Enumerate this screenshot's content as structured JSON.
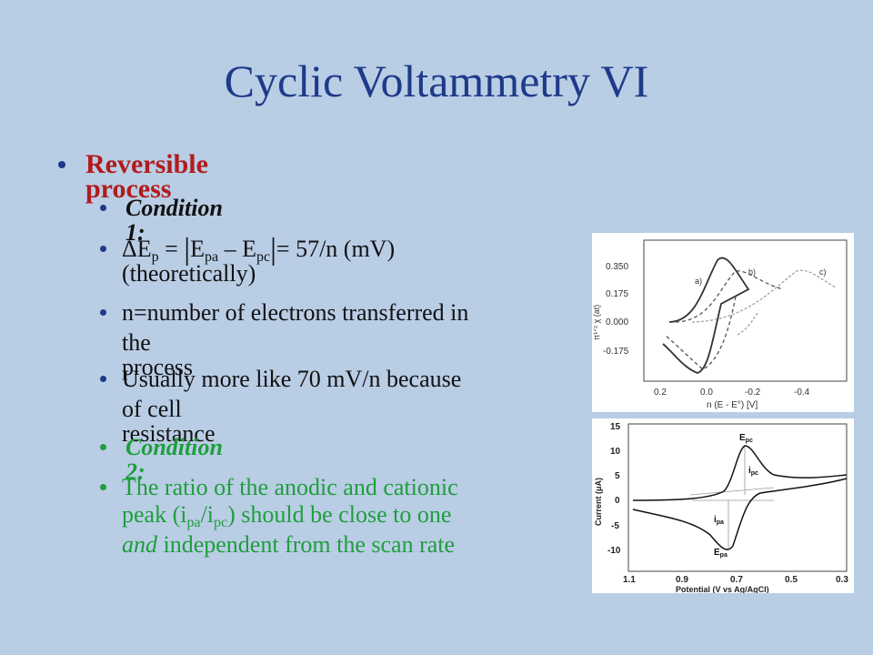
{
  "slide": {
    "title": "Cyclic Voltammetry VI",
    "bullets": {
      "reversible": "Reversible process",
      "condition1": "Condition 1:",
      "dep_delta": "ΔE",
      "dep_sub_p": "p",
      "dep_eq": " = ",
      "dep_bar": "|",
      "dep_E1": "E",
      "dep_sub_pa": "pa",
      "dep_minus": " – E",
      "dep_sub_pc": "pc",
      "dep_tail": "= 57/n (mV)",
      "dep_line2": "(theoretically)",
      "n_line1": "n=number of electrons transferred in",
      "n_line2": "the process",
      "usual_line1": "Usually more like 70 mV/n because",
      "usual_line2": "of cell resistance",
      "condition2": "Condition 2:",
      "ratio_line1": "The ratio of the anodic and cationic",
      "ratio_l2_a": "peak (i",
      "ratio_l2_sub1": "pa",
      "ratio_l2_b": "/i",
      "ratio_l2_sub2": "pc",
      "ratio_l2_c": ") should be close to one",
      "ratio_l3_and": "and",
      "ratio_l3_rest": " independent from the scan rate"
    }
  },
  "figure_top": {
    "y_ticks": [
      "0.350",
      "0.175",
      "0.000",
      "-0.175"
    ],
    "x_ticks": [
      "0.2",
      "0.0",
      "-0.2",
      "-0.4"
    ],
    "y_label": "π¹ᐟ² χ (at)",
    "x_label": "n (E - E°) [V]",
    "curve_labels": [
      "a)",
      "b)",
      "c)"
    ]
  },
  "figure_bottom": {
    "y_ticks": [
      "15",
      "10",
      "5",
      "0",
      "-5",
      "-10"
    ],
    "x_ticks": [
      "1.1",
      "0.9",
      "0.7",
      "0.5",
      "0.3"
    ],
    "y_label": "Current (μA)",
    "x_label": "Potential (V vs Ag/AgCl)",
    "annotations": {
      "epc": "E",
      "epc_sub": "pc",
      "ipc": "i",
      "ipc_sub": "pc",
      "ipa": "i",
      "ipa_sub": "pa",
      "epa": "E",
      "epa_sub": "pa"
    }
  },
  "colors": {
    "background": "#b9cde5",
    "title": "#1f3a8a",
    "heading": "#b01c1c",
    "green": "#1e9e3c"
  }
}
